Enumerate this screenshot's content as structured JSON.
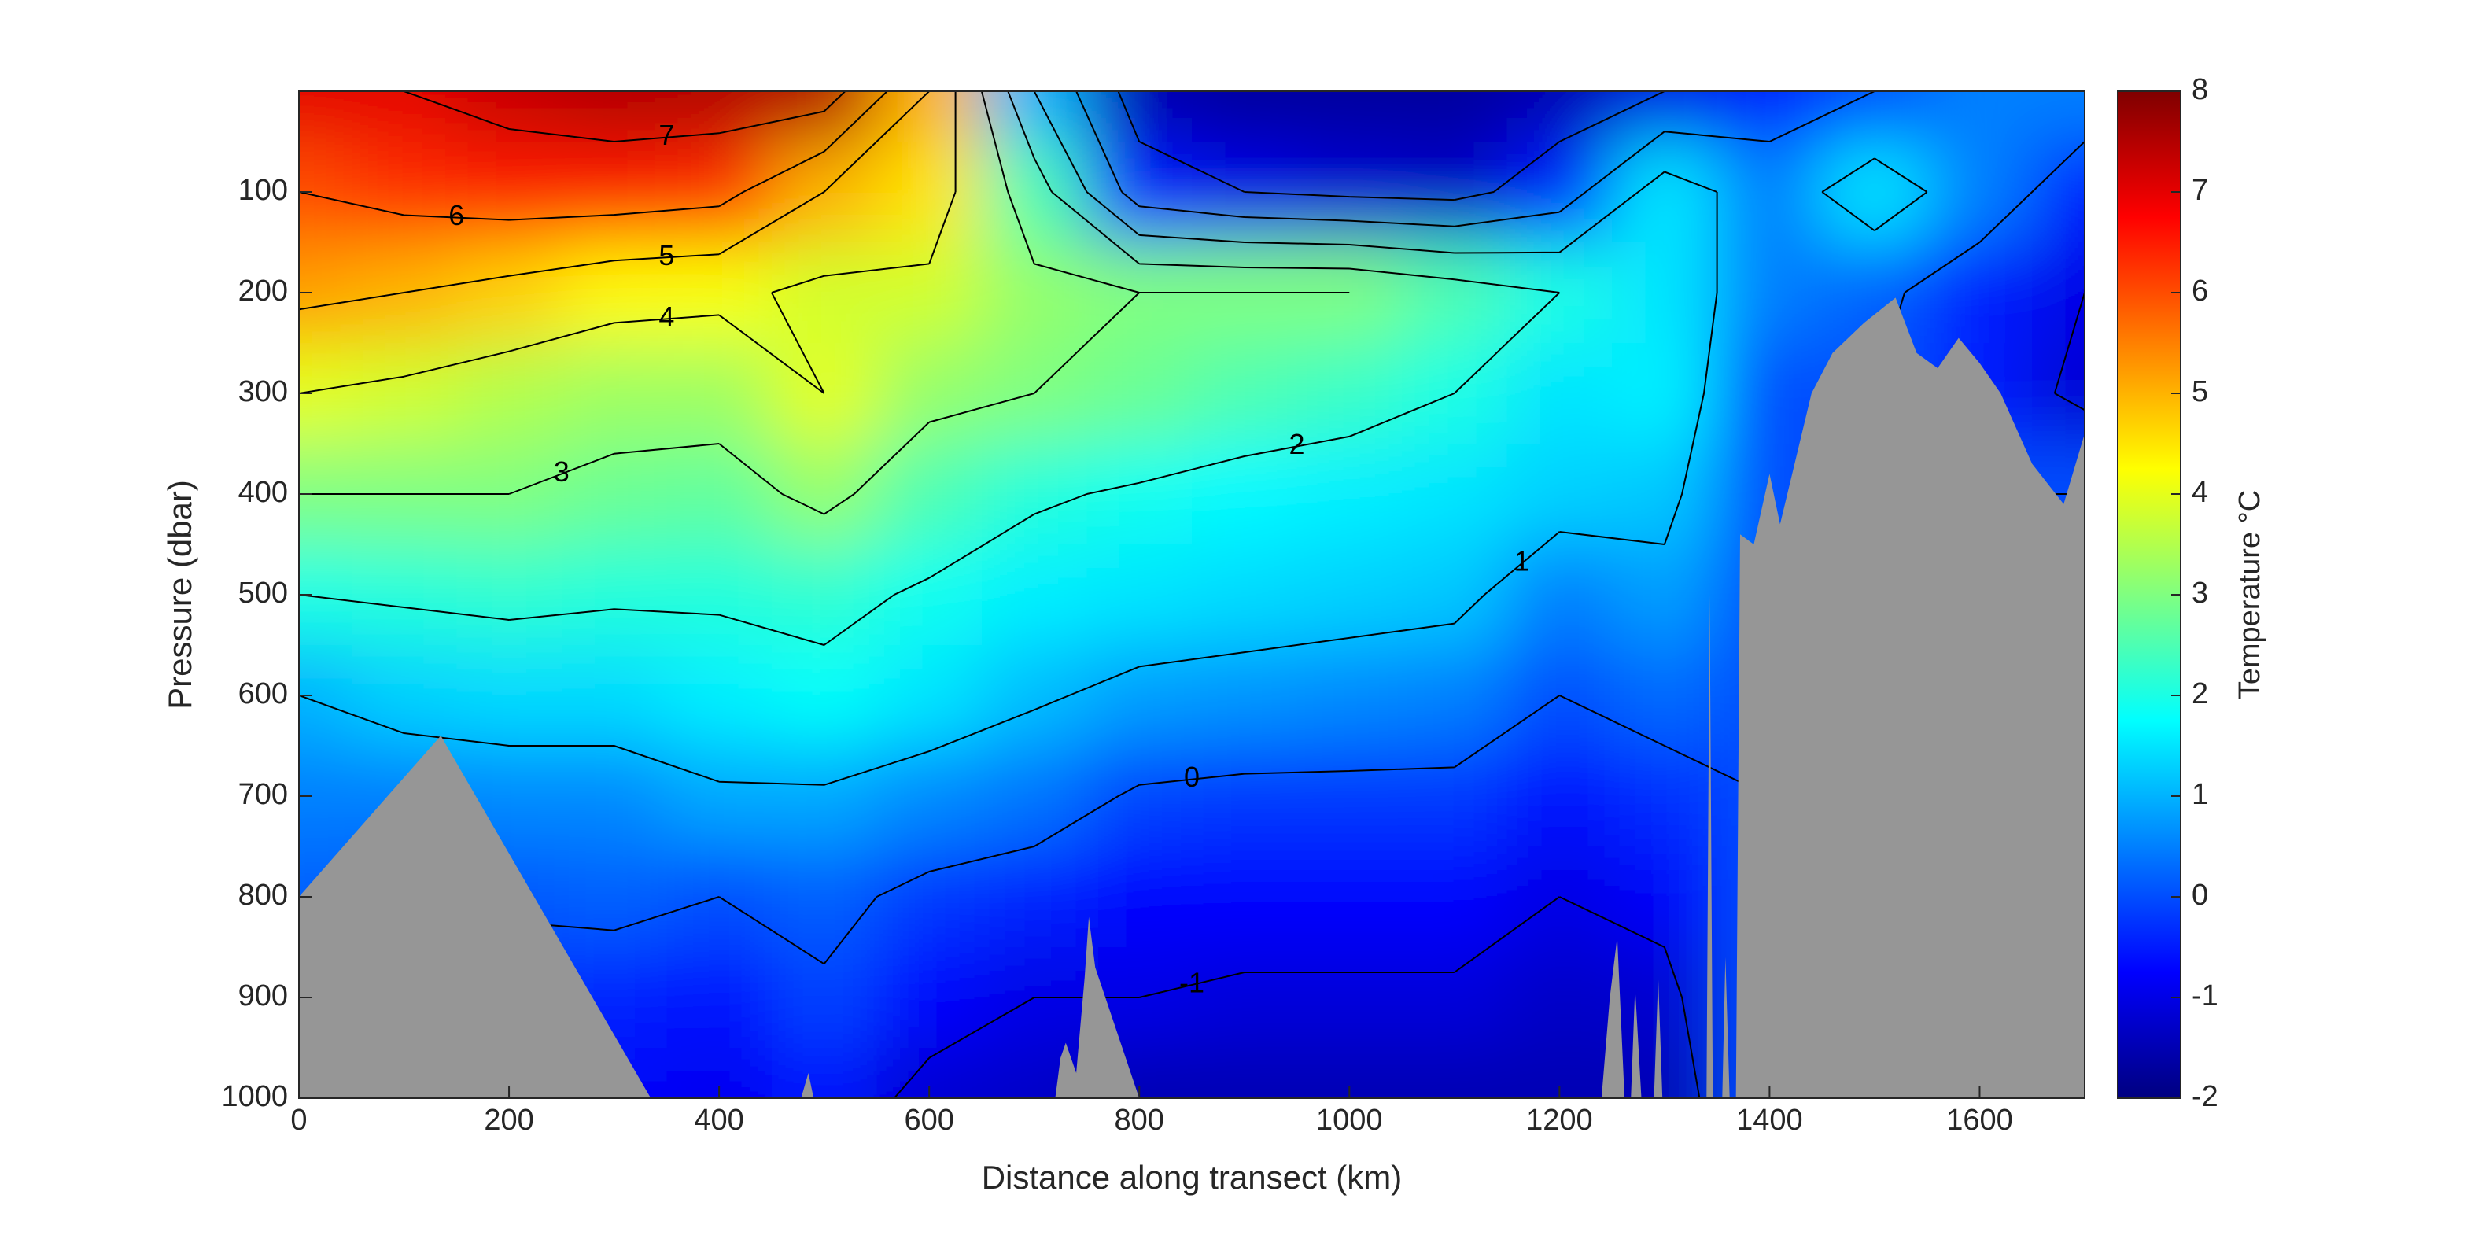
{
  "chart_data": {
    "type": "contour",
    "x_label": "Distance along transect (km)",
    "y_label": "Pressure (dbar)",
    "colorbar_label": "Temperature °C",
    "x": [
      0,
      100,
      200,
      300,
      400,
      500,
      600,
      700,
      800,
      900,
      1000,
      1100,
      1200,
      1300,
      1400,
      1500,
      1600,
      1700
    ],
    "pressure": [
      0,
      100,
      200,
      300,
      400,
      500,
      600,
      700,
      800,
      900,
      1000
    ],
    "values": [
      [
        7,
        7,
        7.3,
        7.5,
        7.5,
        7.5,
        5,
        1,
        -1.5,
        -1.7,
        -1.7,
        -1.7,
        -1.5,
        -1,
        -0.5,
        0,
        0.5,
        0.5
      ],
      [
        6,
        6.3,
        6.5,
        6.5,
        6.3,
        5,
        4.5,
        2.5,
        -0.5,
        -1,
        -1.2,
        -1.3,
        -0.5,
        1.5,
        0.5,
        1.5,
        0.5,
        -0.5
      ],
      [
        5.2,
        5,
        4.7,
        4.3,
        4.2,
        3.8,
        3.8,
        3.2,
        3,
        3,
        3,
        2.5,
        2,
        1.5,
        0.5,
        0.2,
        -0.5,
        -1
      ],
      [
        4,
        3.8,
        3.5,
        3.3,
        3.3,
        4,
        3.2,
        3,
        2.8,
        2.5,
        2.3,
        2,
        1.5,
        1.6,
        0,
        0,
        -0.5,
        -1.2
      ],
      [
        3,
        3,
        3,
        2.8,
        2.7,
        3.2,
        2.5,
        2.1,
        1.9,
        1.7,
        1.6,
        1.5,
        1.3,
        1.2,
        0,
        0,
        0,
        0
      ],
      [
        2,
        2.1,
        2.2,
        2.1,
        2.1,
        2.2,
        1.9,
        1.6,
        1.5,
        1.4,
        1.3,
        1.2,
        0.5,
        0.8,
        0,
        0,
        0,
        0
      ],
      [
        1,
        1.3,
        1.4,
        1.4,
        1.6,
        1.8,
        1.5,
        1.1,
        0.8,
        0.7,
        0.6,
        0.5,
        0,
        0.3,
        0,
        0,
        0,
        0
      ],
      [
        0.5,
        0.5,
        0.6,
        0.6,
        0.9,
        0.9,
        0.6,
        0.4,
        -0.1,
        -0.2,
        -0.2,
        -0.2,
        -0.6,
        -0.3,
        0,
        0,
        0,
        0
      ],
      [
        0.2,
        0.1,
        0.1,
        0.2,
        0,
        0.2,
        -0.2,
        -0.4,
        -0.7,
        -0.7,
        -0.7,
        -0.7,
        -1,
        -0.8,
        0,
        0,
        0,
        0
      ],
      [
        -0.3,
        -0.3,
        -0.3,
        -0.4,
        -0.6,
        -0.1,
        -0.7,
        -1,
        -1,
        -1.1,
        -1.1,
        -1.1,
        -1.3,
        -1.2,
        0,
        0,
        0,
        0
      ],
      [
        -0.8,
        -0.8,
        -0.8,
        -0.8,
        -0.9,
        -0.6,
        -1.2,
        -1.3,
        -1.5,
        -1.5,
        -1.5,
        -1.5,
        -1.5,
        -1.5,
        0,
        0,
        0,
        0
      ]
    ],
    "contour_levels": [
      -1,
      0,
      1,
      2,
      3,
      4,
      5,
      6,
      7
    ],
    "bathymetry": {
      "color": "#969696",
      "x": [
        0,
        135,
        335,
        478,
        485,
        490,
        720,
        725,
        730,
        740,
        748,
        752,
        758,
        800,
        1240,
        1248,
        1255,
        1262,
        1268,
        1272,
        1278,
        1290,
        1294,
        1298,
        1340,
        1343,
        1346,
        1355,
        1358,
        1362,
        1368,
        1372,
        1385,
        1400,
        1410,
        1440,
        1460,
        1490,
        1520,
        1540,
        1560,
        1580,
        1600,
        1620,
        1650,
        1680,
        1700
      ],
      "depth": [
        800,
        640,
        1000,
        1000,
        975,
        1000,
        1000,
        960,
        945,
        975,
        880,
        820,
        870,
        1000,
        1000,
        900,
        840,
        1000,
        1000,
        890,
        1000,
        1000,
        880,
        1000,
        1000,
        500,
        1000,
        1000,
        860,
        1000,
        1000,
        440,
        450,
        380,
        430,
        300,
        260,
        230,
        205,
        260,
        275,
        245,
        270,
        300,
        370,
        410,
        340
      ]
    },
    "xlim": [
      0,
      1700
    ],
    "xticks": [
      0,
      200,
      400,
      600,
      800,
      1000,
      1200,
      1400,
      1600
    ],
    "ylim": [
      0,
      1000
    ],
    "y_reversed": true,
    "yticks": [
      100,
      200,
      300,
      400,
      500,
      600,
      700,
      800,
      900,
      1000
    ],
    "clim": [
      -2,
      8
    ],
    "cticks": [
      -2,
      -1,
      0,
      1,
      2,
      3,
      4,
      5,
      6,
      7,
      8
    ],
    "colormap": "jet"
  }
}
